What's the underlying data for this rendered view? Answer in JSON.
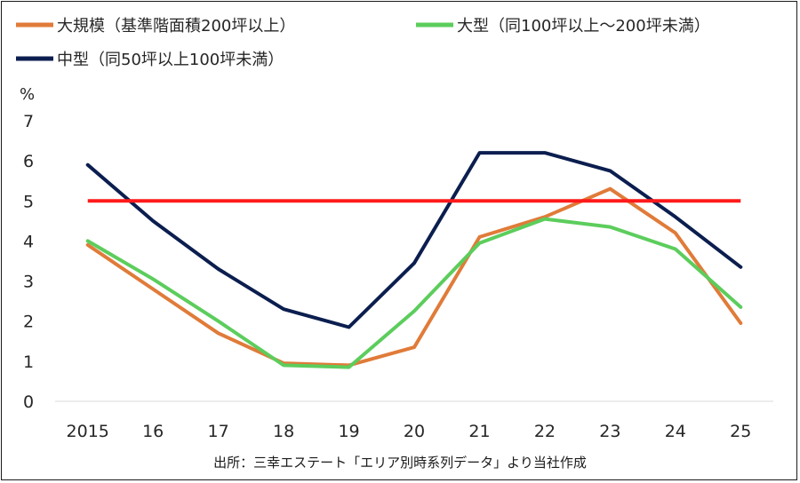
{
  "chart_data": {
    "type": "line",
    "title": "",
    "ylabel": "%",
    "xlabel": "",
    "categories": [
      "2015",
      "16",
      "17",
      "18",
      "19",
      "20",
      "21",
      "22",
      "23",
      "24",
      "25"
    ],
    "ylim": [
      0,
      7
    ],
    "yticks": [
      "0",
      "1",
      "2",
      "3",
      "4",
      "5",
      "6",
      "7"
    ],
    "grid": false,
    "legend_position": "top-left",
    "series": [
      {
        "name": "大規模（基準階面積200坪以上）",
        "color": "#E07B39",
        "values": [
          3.9,
          2.8,
          1.7,
          0.95,
          0.9,
          1.35,
          4.1,
          4.6,
          5.3,
          4.2,
          1.95
        ]
      },
      {
        "name": "大型（同100坪以上～200坪未満）",
        "color": "#5CCD5C",
        "values": [
          4.0,
          3.05,
          2.0,
          0.9,
          0.85,
          2.25,
          3.95,
          4.55,
          4.35,
          3.8,
          2.35
        ]
      },
      {
        "name": "中型（同50坪以上100坪未満）",
        "color": "#0B1E4F",
        "values": [
          5.9,
          4.5,
          3.3,
          2.3,
          1.85,
          3.45,
          6.2,
          6.2,
          5.75,
          4.6,
          3.35
        ]
      }
    ],
    "reference_line": {
      "value": 5,
      "color": "#FF1A1A"
    }
  },
  "source": "出所：三幸エステート「エリア別時系列データ」より当社作成"
}
